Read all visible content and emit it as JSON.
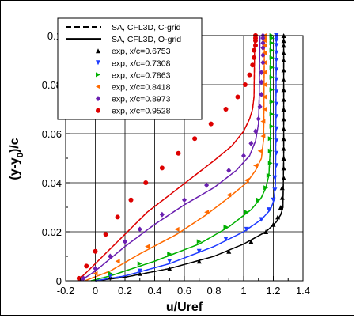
{
  "chart_data": {
    "type": "line",
    "xlabel": "u/Uref",
    "ylabel": "(y-y0)/c",
    "ylabel_parts": {
      "pre": "(y-y",
      "sub": "0",
      "post": ")/c"
    },
    "xlim": [
      -0.2,
      1.4
    ],
    "ylim": [
      0,
      0.1
    ],
    "x_ticks": [
      -0.2,
      0,
      0.2,
      0.4,
      0.6,
      0.8,
      1,
      1.2,
      1.4
    ],
    "x_tick_labels": [
      "-0.2",
      "0",
      "0.2",
      "0.4",
      "0.6",
      "0.8",
      "1",
      "1.2",
      "1.4"
    ],
    "y_ticks": [
      0,
      0.02,
      0.04,
      0.06,
      0.08,
      0.1
    ],
    "y_tick_labels": [
      "0",
      "0.02",
      "0.04",
      "0.06",
      "0.08",
      "0.1"
    ],
    "grid": true,
    "legend_position": "top-left",
    "series": [
      {
        "name": "SA, CFL3D, C-grid",
        "kind": "line",
        "style": "dashed",
        "color": "#000000",
        "curves": [
          {
            "color": "#000000",
            "points": [
              [
                0,
                0
              ],
              [
                0.2,
                0.0015
              ],
              [
                0.5,
                0.005
              ],
              [
                0.8,
                0.01
              ],
              [
                1.0,
                0.015
              ],
              [
                1.15,
                0.02
              ],
              [
                1.22,
                0.024
              ],
              [
                1.25,
                0.027
              ],
              [
                1.265,
                0.03
              ],
              [
                1.27,
                0.05
              ],
              [
                1.27,
                0.1
              ]
            ]
          },
          {
            "color": "#1f3cff",
            "points": [
              [
                0,
                0
              ],
              [
                0.2,
                0.002
              ],
              [
                0.5,
                0.007
              ],
              [
                0.8,
                0.014
              ],
              [
                1.0,
                0.02
              ],
              [
                1.12,
                0.025
              ],
              [
                1.18,
                0.029
              ],
              [
                1.205,
                0.033
              ],
              [
                1.215,
                0.04
              ],
              [
                1.22,
                0.1
              ]
            ]
          },
          {
            "color": "#00b000",
            "points": [
              [
                -0.03,
                0
              ],
              [
                0.1,
                0.002
              ],
              [
                0.4,
                0.008
              ],
              [
                0.7,
                0.015
              ],
              [
                0.9,
                0.022
              ],
              [
                1.05,
                0.029
              ],
              [
                1.12,
                0.034
              ],
              [
                1.15,
                0.038
              ],
              [
                1.17,
                0.043
              ],
              [
                1.18,
                0.055
              ],
              [
                1.18,
                0.1
              ]
            ]
          },
          {
            "color": "#ff6a00",
            "points": [
              [
                -0.07,
                0
              ],
              [
                0.1,
                0.004
              ],
              [
                0.3,
                0.011
              ],
              [
                0.55,
                0.019
              ],
              [
                0.75,
                0.027
              ],
              [
                0.9,
                0.034
              ],
              [
                1.02,
                0.04
              ],
              [
                1.08,
                0.045
              ],
              [
                1.12,
                0.05
              ],
              [
                1.135,
                0.058
              ],
              [
                1.14,
                0.1
              ]
            ]
          },
          {
            "color": "#6a1fb0",
            "points": [
              [
                -0.1,
                0
              ],
              [
                0.0,
                0.004
              ],
              [
                0.2,
                0.014
              ],
              [
                0.4,
                0.023
              ],
              [
                0.6,
                0.031
              ],
              [
                0.8,
                0.038
              ],
              [
                0.95,
                0.045
              ],
              [
                1.04,
                0.051
              ],
              [
                1.08,
                0.057
              ],
              [
                1.1,
                0.064
              ],
              [
                1.105,
                0.075
              ],
              [
                1.11,
                0.1
              ]
            ]
          },
          {
            "color": "#dd0000",
            "points": [
              [
                -0.12,
                0
              ],
              [
                -0.05,
                0.004
              ],
              [
                0.05,
                0.01
              ],
              [
                0.2,
                0.019
              ],
              [
                0.35,
                0.028
              ],
              [
                0.5,
                0.035
              ],
              [
                0.65,
                0.042
              ],
              [
                0.8,
                0.049
              ],
              [
                0.92,
                0.055
              ],
              [
                1.0,
                0.061
              ],
              [
                1.04,
                0.066
              ],
              [
                1.06,
                0.07
              ],
              [
                1.07,
                0.075
              ],
              [
                1.075,
                0.1
              ]
            ]
          }
        ]
      },
      {
        "name": "SA, CFL3D, O-grid",
        "kind": "line",
        "style": "solid",
        "color": "#000000",
        "curves": [
          {
            "color": "#000000",
            "points": [
              [
                0,
                0
              ],
              [
                0.2,
                0.0015
              ],
              [
                0.5,
                0.005
              ],
              [
                0.8,
                0.01
              ],
              [
                1.0,
                0.015
              ],
              [
                1.15,
                0.02
              ],
              [
                1.22,
                0.024
              ],
              [
                1.25,
                0.027
              ],
              [
                1.265,
                0.03
              ],
              [
                1.27,
                0.05
              ],
              [
                1.27,
                0.1
              ]
            ]
          },
          {
            "color": "#1f3cff",
            "points": [
              [
                0,
                0
              ],
              [
                0.2,
                0.002
              ],
              [
                0.5,
                0.007
              ],
              [
                0.8,
                0.014
              ],
              [
                1.0,
                0.02
              ],
              [
                1.12,
                0.025
              ],
              [
                1.18,
                0.029
              ],
              [
                1.205,
                0.033
              ],
              [
                1.215,
                0.04
              ],
              [
                1.22,
                0.1
              ]
            ]
          },
          {
            "color": "#00b000",
            "points": [
              [
                -0.03,
                0
              ],
              [
                0.1,
                0.002
              ],
              [
                0.4,
                0.008
              ],
              [
                0.7,
                0.015
              ],
              [
                0.9,
                0.022
              ],
              [
                1.05,
                0.029
              ],
              [
                1.12,
                0.034
              ],
              [
                1.15,
                0.038
              ],
              [
                1.17,
                0.043
              ],
              [
                1.18,
                0.055
              ],
              [
                1.18,
                0.1
              ]
            ]
          },
          {
            "color": "#ff6a00",
            "points": [
              [
                -0.07,
                0
              ],
              [
                0.1,
                0.004
              ],
              [
                0.3,
                0.011
              ],
              [
                0.55,
                0.019
              ],
              [
                0.75,
                0.027
              ],
              [
                0.9,
                0.034
              ],
              [
                1.02,
                0.04
              ],
              [
                1.08,
                0.045
              ],
              [
                1.12,
                0.05
              ],
              [
                1.135,
                0.058
              ],
              [
                1.14,
                0.1
              ]
            ]
          },
          {
            "color": "#6a1fb0",
            "points": [
              [
                -0.1,
                0
              ],
              [
                0.0,
                0.004
              ],
              [
                0.2,
                0.014
              ],
              [
                0.4,
                0.023
              ],
              [
                0.6,
                0.031
              ],
              [
                0.8,
                0.038
              ],
              [
                0.95,
                0.045
              ],
              [
                1.04,
                0.051
              ],
              [
                1.08,
                0.057
              ],
              [
                1.1,
                0.064
              ],
              [
                1.105,
                0.075
              ],
              [
                1.11,
                0.1
              ]
            ]
          },
          {
            "color": "#dd0000",
            "points": [
              [
                -0.12,
                0
              ],
              [
                -0.05,
                0.004
              ],
              [
                0.05,
                0.01
              ],
              [
                0.2,
                0.019
              ],
              [
                0.35,
                0.028
              ],
              [
                0.5,
                0.035
              ],
              [
                0.65,
                0.042
              ],
              [
                0.8,
                0.049
              ],
              [
                0.92,
                0.055
              ],
              [
                1.0,
                0.061
              ],
              [
                1.04,
                0.066
              ],
              [
                1.06,
                0.07
              ],
              [
                1.07,
                0.075
              ],
              [
                1.075,
                0.1
              ]
            ]
          }
        ]
      },
      {
        "name": "exp, x/c=0.6753",
        "kind": "scatter",
        "marker": "triangle-up",
        "color": "#000000",
        "x": [
          0.1,
          0.3,
          0.5,
          0.7,
          0.9,
          1.05,
          1.15,
          1.2,
          1.23,
          1.25,
          1.26,
          1.26,
          1.27,
          1.27,
          1.27,
          1.27,
          1.27,
          1.27,
          1.27,
          1.27,
          1.27,
          1.27,
          1.27,
          1.27,
          1.27,
          1.27,
          1.27,
          1.27,
          1.27
        ],
        "y": [
          0.0015,
          0.003,
          0.005,
          0.008,
          0.012,
          0.016,
          0.02,
          0.023,
          0.026,
          0.03,
          0.034,
          0.038,
          0.042,
          0.046,
          0.05,
          0.054,
          0.058,
          0.062,
          0.066,
          0.07,
          0.074,
          0.078,
          0.082,
          0.086,
          0.09,
          0.093,
          0.096,
          0.098,
          0.1
        ]
      },
      {
        "name": "exp, x/c=0.7308",
        "kind": "scatter",
        "marker": "triangle-down",
        "color": "#1f3cff",
        "x": [
          0.1,
          0.3,
          0.5,
          0.7,
          0.88,
          1.02,
          1.12,
          1.17,
          1.2,
          1.21,
          1.21,
          1.22,
          1.22,
          1.22,
          1.22,
          1.22,
          1.22,
          1.22,
          1.22,
          1.22,
          1.22,
          1.22,
          1.22,
          1.22,
          1.22,
          1.22
        ],
        "y": [
          0.002,
          0.004,
          0.008,
          0.012,
          0.017,
          0.021,
          0.025,
          0.029,
          0.033,
          0.037,
          0.042,
          0.047,
          0.052,
          0.057,
          0.062,
          0.067,
          0.072,
          0.077,
          0.082,
          0.086,
          0.09,
          0.093,
          0.096,
          0.098,
          0.1,
          0.099
        ]
      },
      {
        "name": "exp, x/c=0.7863",
        "kind": "scatter",
        "marker": "triangle-right",
        "color": "#00b000",
        "x": [
          0.1,
          0.3,
          0.5,
          0.7,
          0.88,
          1.02,
          1.1,
          1.15,
          1.17,
          1.18,
          1.18,
          1.18,
          1.19,
          1.19,
          1.19,
          1.19,
          1.19,
          1.19,
          1.19,
          1.19,
          1.19,
          1.19,
          1.19
        ],
        "y": [
          0.003,
          0.007,
          0.011,
          0.016,
          0.022,
          0.028,
          0.033,
          0.038,
          0.043,
          0.048,
          0.053,
          0.058,
          0.063,
          0.068,
          0.073,
          0.078,
          0.083,
          0.087,
          0.091,
          0.094,
          0.097,
          0.099,
          0.1
        ]
      },
      {
        "name": "exp, x/c=0.8418",
        "kind": "scatter",
        "marker": "triangle-left",
        "color": "#ff6a00",
        "x": [
          0.0,
          0.15,
          0.35,
          0.55,
          0.75,
          0.9,
          1.02,
          1.08,
          1.11,
          1.13,
          1.13,
          1.14,
          1.14,
          1.14,
          1.14,
          1.14,
          1.14,
          1.14,
          1.14,
          1.14,
          1.14
        ],
        "y": [
          0.003,
          0.008,
          0.014,
          0.021,
          0.028,
          0.035,
          0.041,
          0.047,
          0.053,
          0.059,
          0.065,
          0.07,
          0.075,
          0.08,
          0.085,
          0.089,
          0.093,
          0.096,
          0.098,
          0.1,
          0.099
        ]
      },
      {
        "name": "exp, x/c=0.8973",
        "kind": "scatter",
        "marker": "diamond",
        "color": "#6a1fb0",
        "x": [
          -0.08,
          0.0,
          0.1,
          0.2,
          0.3,
          0.45,
          0.6,
          0.75,
          0.9,
          1.0,
          1.05,
          1.08,
          1.1,
          1.11,
          1.12,
          1.12,
          1.12,
          1.13,
          1.13,
          1.13,
          1.13,
          1.13,
          1.13
        ],
        "y": [
          0.001,
          0.005,
          0.01,
          0.016,
          0.021,
          0.027,
          0.033,
          0.039,
          0.045,
          0.051,
          0.056,
          0.061,
          0.066,
          0.071,
          0.076,
          0.081,
          0.085,
          0.089,
          0.092,
          0.095,
          0.097,
          0.099,
          0.1
        ]
      },
      {
        "name": "exp, x/c=0.9528",
        "kind": "scatter",
        "marker": "circle",
        "color": "#dd0000",
        "x": [
          -0.11,
          -0.06,
          0.0,
          0.07,
          0.15,
          0.24,
          0.34,
          0.45,
          0.56,
          0.67,
          0.78,
          0.88,
          0.96,
          1.01,
          1.04,
          1.06,
          1.07,
          1.07,
          1.08,
          1.08,
          1.08,
          1.08,
          1.08
        ],
        "y": [
          0.001,
          0.006,
          0.012,
          0.019,
          0.026,
          0.033,
          0.04,
          0.046,
          0.052,
          0.058,
          0.064,
          0.07,
          0.075,
          0.08,
          0.084,
          0.088,
          0.091,
          0.094,
          0.096,
          0.098,
          0.099,
          0.1,
          0.1
        ]
      }
    ]
  }
}
